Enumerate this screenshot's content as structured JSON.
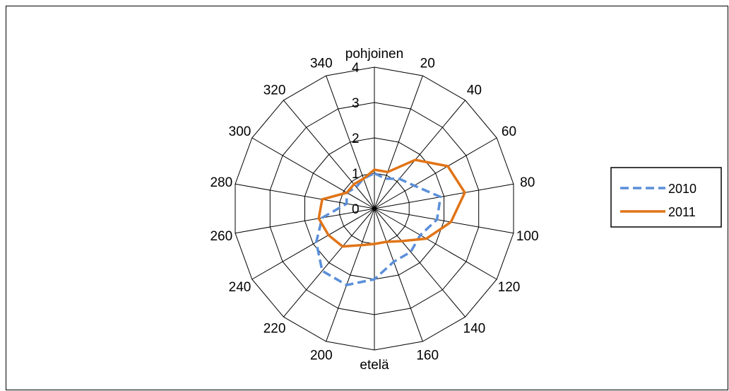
{
  "chart_data": {
    "type": "radar",
    "title": "",
    "directions": [
      "pohjoinen",
      "20",
      "40",
      "60",
      "80",
      "100",
      "120",
      "140",
      "160",
      "etelä",
      "200",
      "220",
      "240",
      "260",
      "280",
      "300",
      "320",
      "340"
    ],
    "angles_deg": [
      0,
      20,
      40,
      60,
      80,
      100,
      120,
      140,
      160,
      180,
      200,
      220,
      240,
      260,
      280,
      300,
      320,
      340
    ],
    "radial_ticks": [
      "0",
      "1",
      "2",
      "3",
      "4"
    ],
    "rlim": [
      0,
      4
    ],
    "series": [
      {
        "name": "2010",
        "color": "#5B8FD9",
        "line_style": "dashed",
        "values": [
          1.0,
          0.9,
          1.1,
          1.3,
          1.9,
          1.8,
          1.5,
          1.6,
          1.6,
          2.0,
          2.3,
          2.3,
          1.9,
          1.5,
          0.8,
          0.9,
          0.8,
          0.9
        ]
      },
      {
        "name": "2011",
        "color": "#E07417",
        "line_style": "solid",
        "values": [
          1.1,
          1.1,
          1.8,
          2.4,
          2.6,
          2.2,
          1.7,
          1.2,
          1.0,
          1.0,
          1.1,
          1.4,
          1.5,
          1.6,
          1.5,
          0.9,
          0.9,
          0.9
        ]
      }
    ],
    "legend_position": "right",
    "grid": true
  }
}
